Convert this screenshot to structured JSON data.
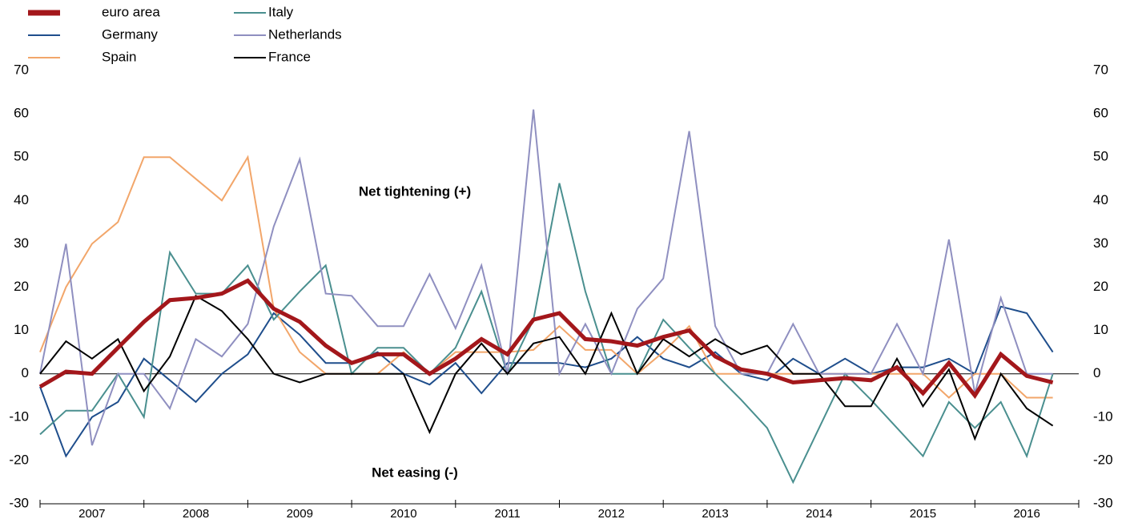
{
  "chart_data": {
    "type": "line",
    "annotations": [
      "Net tightening (+)",
      "Net easing (-)"
    ],
    "x": [
      2007,
      2007.25,
      2007.5,
      2007.75,
      2008,
      2008.25,
      2008.5,
      2008.75,
      2009,
      2009.25,
      2009.5,
      2009.75,
      2010,
      2010.25,
      2010.5,
      2010.75,
      2011,
      2011.25,
      2011.5,
      2011.75,
      2012,
      2012.25,
      2012.5,
      2012.75,
      2013,
      2013.25,
      2013.5,
      2013.75,
      2014,
      2014.25,
      2014.5,
      2014.75,
      2015,
      2015.25,
      2015.5,
      2015.75,
      2016,
      2016.25,
      2016.5,
      2016.75
    ],
    "xlim": [
      2007,
      2017
    ],
    "xticks": [
      2007,
      2008,
      2009,
      2010,
      2011,
      2012,
      2013,
      2014,
      2015,
      2016
    ],
    "ylim": [
      -30,
      70
    ],
    "yticks": [
      -30,
      -20,
      -10,
      0,
      10,
      20,
      30,
      40,
      50,
      60,
      70
    ],
    "grid": false,
    "series": [
      {
        "name": "euro area",
        "color": "#a3171b",
        "values": [
          -3,
          0.5,
          0,
          6,
          12,
          17,
          17.5,
          18.5,
          21.5,
          15,
          12,
          6.5,
          2.5,
          4.5,
          4.5,
          0,
          3.5,
          8,
          4.5,
          12.5,
          14,
          8,
          7.5,
          6.5,
          8.5,
          10,
          4,
          1,
          0,
          -2,
          -1.5,
          -1,
          -1.5,
          1.5,
          -4.5,
          2.5,
          -5,
          4.5,
          -0.5,
          -2
        ]
      },
      {
        "name": "Germany",
        "color": "#1f4e8c",
        "values": [
          -3,
          -19,
          -10,
          -6.5,
          3.5,
          -1.5,
          -6.5,
          0,
          4.5,
          14,
          9,
          2.5,
          2.5,
          5,
          0,
          -2.5,
          2.5,
          -4.5,
          2.5,
          2.5,
          2.5,
          1.5,
          3.5,
          8.5,
          3.5,
          1.5,
          5,
          0,
          -1.5,
          3.5,
          0,
          3.5,
          0,
          1.5,
          1.5,
          3.5,
          0,
          15.5,
          14,
          5
        ]
      },
      {
        "name": "Spain",
        "color": "#f2a66a",
        "values": [
          5,
          20,
          30,
          35,
          50,
          50,
          45,
          40,
          50,
          15,
          5,
          0,
          0,
          0,
          5,
          0,
          5,
          5,
          5,
          5.5,
          11,
          5.5,
          5.5,
          0,
          5,
          11,
          0,
          0,
          0,
          0,
          0,
          0,
          0,
          0,
          0,
          -5.5,
          0,
          0,
          -5.5,
          -5.5
        ]
      },
      {
        "name": "Italy",
        "color": "#4a8f8f",
        "values": [
          -14,
          -8.5,
          -8.5,
          0,
          -10,
          28,
          18.5,
          18.5,
          25,
          12.5,
          19,
          25,
          0,
          6,
          6,
          0,
          6,
          19,
          0,
          12.5,
          44,
          19,
          0,
          0,
          12.5,
          6,
          0,
          -6,
          -12.5,
          -25,
          -12.5,
          0,
          -6,
          -12.5,
          -19,
          -6.5,
          -12.5,
          -6.5,
          -19,
          0
        ]
      },
      {
        "name": "Netherlands",
        "color": "#8f8fc0",
        "values": [
          0,
          30,
          -16.5,
          0,
          0,
          -8,
          8,
          4,
          11.5,
          34,
          49.5,
          18.5,
          18,
          11,
          11,
          23,
          10.5,
          25,
          0,
          61,
          0,
          11.5,
          0,
          15,
          22,
          56,
          11,
          0,
          0,
          11.5,
          0,
          0,
          0,
          11.5,
          0,
          31,
          -4.5,
          17.5,
          0,
          0
        ]
      },
      {
        "name": "France",
        "color": "#000000",
        "values": [
          0,
          7.5,
          3.5,
          8,
          -4,
          4,
          18,
          14.5,
          8,
          0,
          -2,
          0,
          0,
          0,
          0,
          -13.5,
          0,
          7,
          0,
          7,
          8.5,
          0,
          14,
          0,
          8,
          4,
          8,
          4.5,
          6.5,
          0,
          0,
          -7.5,
          -7.5,
          3.5,
          -7.5,
          1,
          -15,
          0,
          -8,
          -12
        ]
      }
    ]
  }
}
